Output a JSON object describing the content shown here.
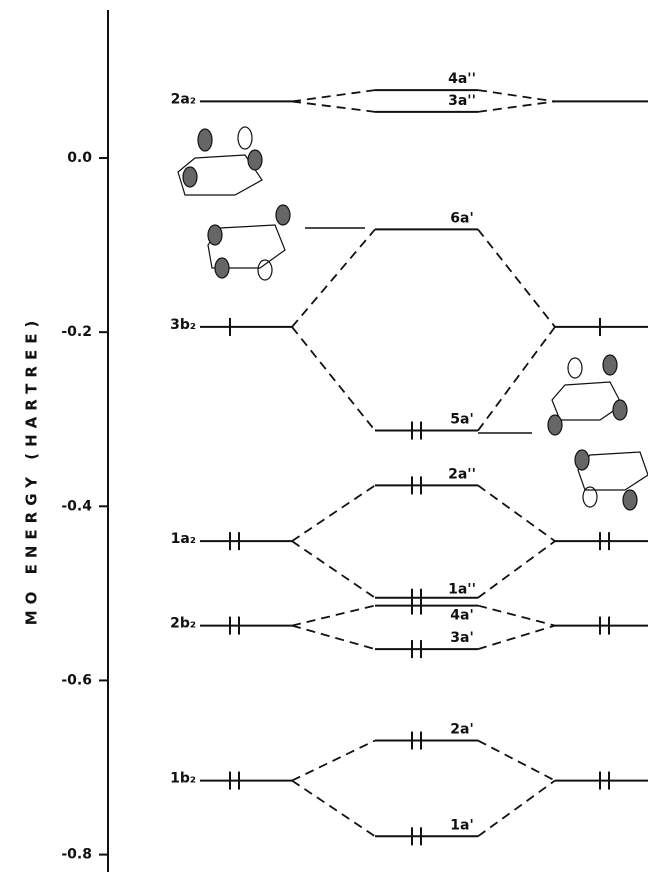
{
  "axis": {
    "label": "MO ENERGY (HARTREE)",
    "ylim": [
      -0.82,
      0.17
    ],
    "yticks": [
      {
        "value": 0,
        "label": "0.0"
      },
      {
        "value": -0.2,
        "label": "-0.2"
      },
      {
        "value": -0.4,
        "label": "-0.4"
      },
      {
        "value": -0.6,
        "label": "-0.6"
      },
      {
        "value": -0.8,
        "label": "-0.8"
      }
    ]
  },
  "pairs": [
    {
      "monomer": {
        "label": "2a₂",
        "energy": 0.065,
        "electrons": 0
      },
      "dimer": [
        {
          "label": "4a''",
          "energy": 0.078,
          "electrons": 0
        },
        {
          "label": "3a''",
          "energy": 0.053,
          "electrons": 0
        }
      ]
    },
    {
      "monomer": {
        "label": "3b₂",
        "energy": -0.194,
        "electrons": 1
      },
      "dimer": [
        {
          "label": "6a'",
          "energy": -0.082,
          "electrons": 0
        },
        {
          "label": "5a'",
          "energy": -0.313,
          "electrons": 2
        }
      ]
    },
    {
      "monomer": {
        "label": "1a₂",
        "energy": -0.44,
        "electrons": 2
      },
      "dimer": [
        {
          "label": "2a''",
          "energy": -0.376,
          "electrons": 2
        },
        {
          "label": "1a''",
          "energy": -0.505,
          "electrons": 2
        }
      ]
    },
    {
      "monomer": {
        "label": "2b₂",
        "energy": -0.537,
        "electrons": 2
      },
      "dimer": [
        {
          "label": "4a'",
          "energy": -0.514,
          "electrons": 2
        },
        {
          "label": "3a'",
          "energy": -0.564,
          "electrons": 2
        }
      ]
    },
    {
      "monomer": {
        "label": "1b₂",
        "energy": -0.715,
        "electrons": 2
      },
      "dimer": [
        {
          "label": "2a'",
          "energy": -0.669,
          "electrons": 2
        },
        {
          "label": "1a'",
          "energy": -0.779,
          "electrons": 2
        }
      ]
    }
  ]
}
